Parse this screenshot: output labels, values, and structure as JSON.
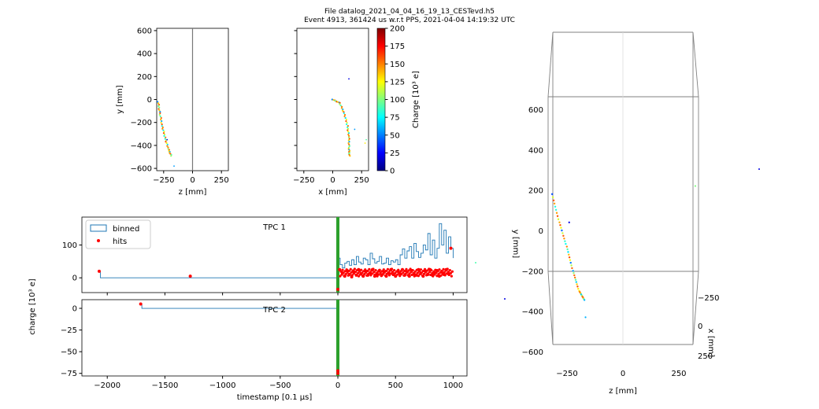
{
  "header": {
    "line1": "File datalog_2021_04_04_16_19_13_CESTevd.h5",
    "line2": "Event 4913, 361424 us w.r.t PPS, 2021-04-04 14:19:32 UTC"
  },
  "colors": {
    "binned": "#1f77b4",
    "hits": "#ff0000",
    "t0_band": "#2ca02c",
    "colormap": [
      "#00007f",
      "#0000ff",
      "#007fff",
      "#00ffff",
      "#7fff7f",
      "#ffff00",
      "#ff7f00",
      "#ff0000",
      "#7f0000"
    ]
  },
  "chart_data": [
    {
      "type": "scatter",
      "panel": "zy",
      "xlabel": "z [mm]",
      "ylabel": "y [mm]",
      "xlim": [
        -310,
        310
      ],
      "ylim": [
        -620,
        620
      ],
      "xticks": [
        -250,
        0,
        250
      ],
      "yticks": [
        -600,
        -400,
        -200,
        0,
        200,
        400,
        600
      ],
      "vline": 0,
      "track": [
        [
          -298,
          -20
        ],
        [
          -283,
          -120
        ],
        [
          -262,
          -230
        ],
        [
          -238,
          -330
        ],
        [
          -210,
          -430
        ],
        [
          -180,
          -500
        ]
      ],
      "points": [
        [
          -220,
          -350
        ],
        [
          -160,
          -580
        ]
      ]
    },
    {
      "type": "scatter",
      "panel": "xy",
      "xlabel": "x [mm]",
      "ylabel": "",
      "xlim": [
        -310,
        310
      ],
      "ylim": [
        -620,
        620
      ],
      "xticks": [
        -250,
        0,
        250
      ],
      "yticks": [
        -600,
        -400,
        -200,
        0,
        200,
        400,
        600
      ],
      "track": [
        [
          0,
          0
        ],
        [
          60,
          -30
        ],
        [
          100,
          -120
        ],
        [
          128,
          -230
        ],
        [
          140,
          -330
        ],
        [
          142,
          -430
        ],
        [
          145,
          -500
        ]
      ],
      "points": [
        [
          140,
          180
        ],
        [
          190,
          -260
        ],
        [
          290,
          -350
        ],
        [
          280,
          -380
        ]
      ]
    },
    {
      "type": "heatmap",
      "panel": "colorbar",
      "label": "Charge [10³ e]",
      "range": [
        0,
        200
      ],
      "ticks": [
        0,
        25,
        50,
        75,
        100,
        125,
        150,
        175,
        200
      ]
    },
    {
      "type": "line",
      "panel": "tpc1",
      "title": "TPC 1",
      "xlim": [
        -2220,
        1120
      ],
      "ylim": [
        -45,
        185
      ],
      "yticks": [
        0,
        100
      ],
      "xticks": [
        -2000,
        -1500,
        -1000,
        -500,
        0,
        500,
        1000
      ],
      "legend": [
        "binned",
        "hits"
      ],
      "legend_position": "top-left",
      "t0": 0,
      "binned": {
        "x": [
          -2080,
          -2070,
          -2060,
          0,
          10,
          20,
          40,
          60,
          80,
          100,
          120,
          140,
          160,
          180,
          200,
          220,
          240,
          260,
          280,
          300,
          320,
          340,
          360,
          380,
          400,
          420,
          440,
          460,
          480,
          500,
          520,
          540,
          560,
          580,
          600,
          620,
          640,
          660,
          680,
          700,
          720,
          740,
          760,
          780,
          800,
          820,
          840,
          860,
          880,
          900,
          920,
          940,
          960,
          980,
          1000
        ],
        "y": [
          20,
          20,
          0,
          120,
          60,
          40,
          30,
          45,
          50,
          38,
          55,
          40,
          65,
          48,
          42,
          60,
          55,
          40,
          75,
          58,
          45,
          50,
          65,
          42,
          45,
          60,
          40,
          52,
          48,
          55,
          40,
          70,
          88,
          60,
          82,
          95,
          60,
          105,
          80,
          62,
          75,
          100,
          85,
          135,
          70,
          115,
          60,
          90,
          165,
          100,
          145,
          75,
          125,
          90,
          60
        ]
      },
      "hits": {
        "x": [
          -2070,
          -1280,
          0,
          15,
          40,
          60,
          80,
          100,
          120,
          140,
          160,
          180,
          200,
          220,
          240,
          260,
          280,
          300,
          320,
          340,
          360,
          380,
          400,
          420,
          440,
          460,
          480,
          500,
          520,
          540,
          560,
          580,
          600,
          620,
          640,
          660,
          680,
          700,
          720,
          740,
          760,
          780,
          800,
          820,
          840,
          860,
          880,
          900,
          920,
          940,
          960,
          980
        ],
        "y": [
          20,
          5,
          -35,
          25,
          15,
          5,
          22,
          10,
          3,
          18,
          8,
          25,
          12,
          5,
          20,
          8,
          15,
          25,
          5,
          12,
          22,
          8,
          18,
          5,
          15,
          25,
          10,
          5,
          20,
          12,
          25,
          8,
          18,
          5,
          22,
          12,
          8,
          25,
          15,
          5,
          20,
          10,
          25,
          8,
          15,
          22,
          5,
          18,
          10,
          25,
          12,
          90
        ]
      }
    },
    {
      "type": "line",
      "panel": "tpc2",
      "title": "TPC 2",
      "xlabel": "timestamp [0.1 µs]",
      "ylabel": "charge [10³ e]",
      "xlim": [
        -2220,
        1120
      ],
      "ylim": [
        -78,
        10
      ],
      "yticks": [
        0,
        -25,
        -50,
        -75
      ],
      "xticks": [
        -2000,
        -1500,
        -1000,
        -500,
        0,
        500,
        1000
      ],
      "t0": 0,
      "binned": {
        "x": [
          -1700,
          -1700,
          0
        ],
        "y": [
          5,
          0,
          0
        ]
      },
      "hits": {
        "x": [
          -1710,
          0,
          0
        ],
        "y": [
          5,
          -75,
          -72
        ]
      }
    },
    {
      "type": "scatter",
      "panel": "3d",
      "xlabel": "z [mm]",
      "ylabel": "y [mm]",
      "zlabel": "x [mm]",
      "xticks": [
        -250,
        0,
        250
      ],
      "yticks": [
        -600,
        -400,
        -200,
        0,
        200,
        400,
        600
      ],
      "zticks": [
        -250,
        0,
        250
      ],
      "track": [
        [
          -300,
          180
        ],
        [
          -270,
          40
        ],
        [
          -240,
          -80
        ],
        [
          -215,
          -200
        ],
        [
          -190,
          -300
        ],
        [
          -165,
          -350
        ]
      ],
      "points": [
        [
          -230,
          40
        ],
        [
          -160,
          -430
        ],
        [
          310,
          220
        ]
      ]
    }
  ]
}
